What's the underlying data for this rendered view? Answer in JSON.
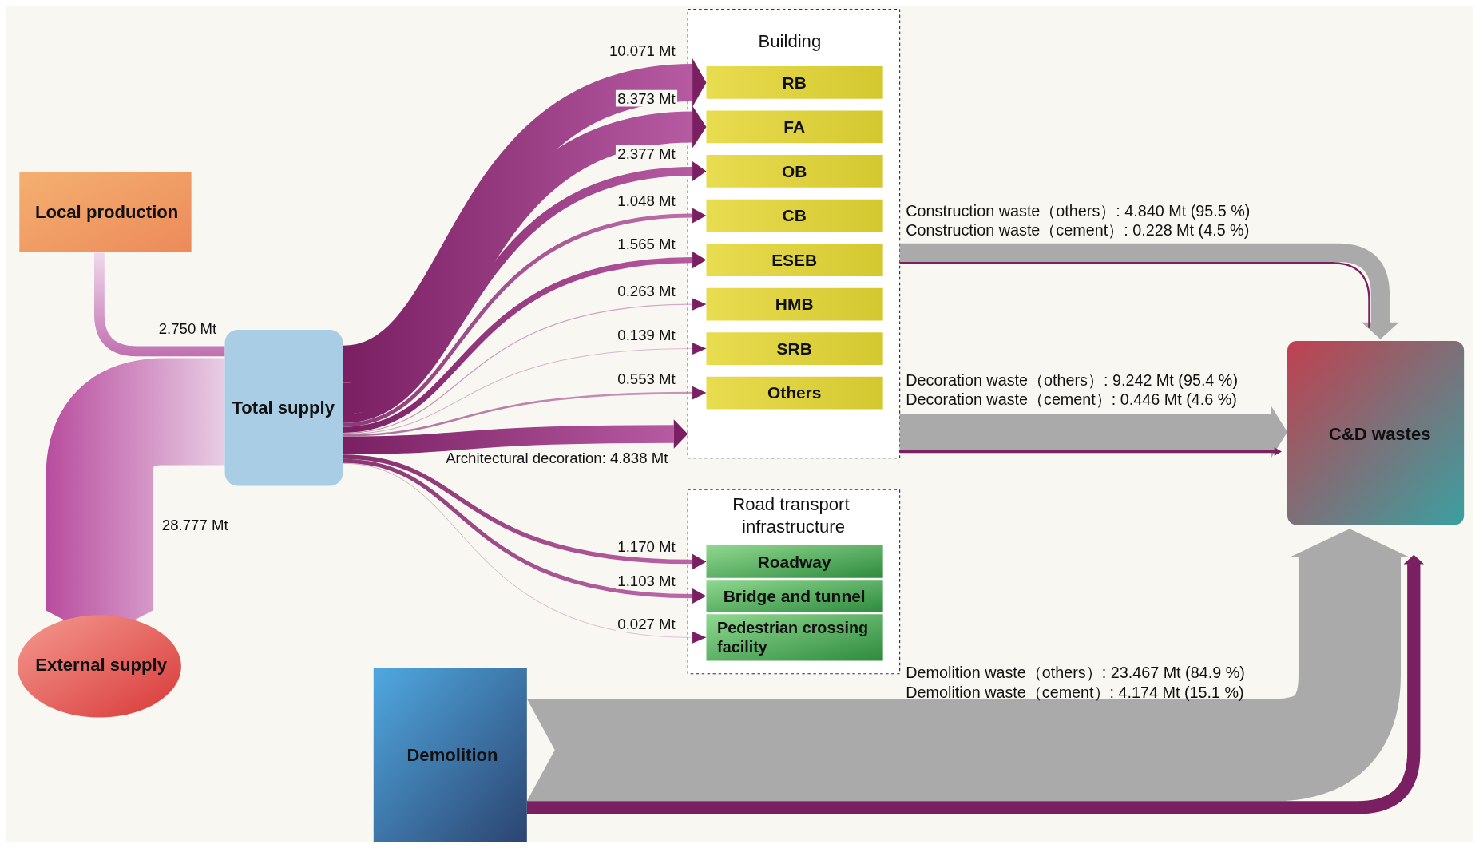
{
  "chart_data": {
    "type": "other",
    "categories": [
      "RB",
      "FA",
      "OB",
      "CB",
      "ESEB",
      "HMB",
      "SRB",
      "Others",
      null,
      "Roadway",
      "Bridge and tunnel",
      "Pedestrian crossing facility"
    ],
    "values": [
      10.071,
      8.373,
      2.377,
      1.048,
      1.565,
      0.263,
      0.139,
      0.553,
      4.838,
      1.17,
      1.103,
      0.027
    ],
    "value_labels": [
      "10.071 Mt",
      "8.373 Mt",
      "2.377 Mt",
      "1.048 Mt",
      "1.565 Mt",
      "0.263 Mt",
      "0.139 Mt",
      "0.553 Mt",
      "Architectural decoration: 4.838 Mt",
      "1.170 Mt",
      "1.103 Mt",
      "0.027 Mt"
    ],
    "annotations": [
      "Local production",
      "External supply",
      "Total supply",
      "2.750 Mt",
      "28.777 Mt",
      "Building",
      "Road transport infrastructure",
      "C&D wastes",
      "Demolition",
      "Construction waste（others）: 4.840 Mt (95.5 %)",
      "Construction waste（cement）: 0.228 Mt (4.5 %)",
      "Decoration waste（others）: 9.242 Mt (95.4 %)",
      "Decoration waste（cement）: 0.446 Mt (4.6 %)",
      "Demolition waste（others）: 23.467 Mt (84.9 %)",
      "Demolition waste（cement）: 4.174 Mt (15.1 %)"
    ]
  }
}
